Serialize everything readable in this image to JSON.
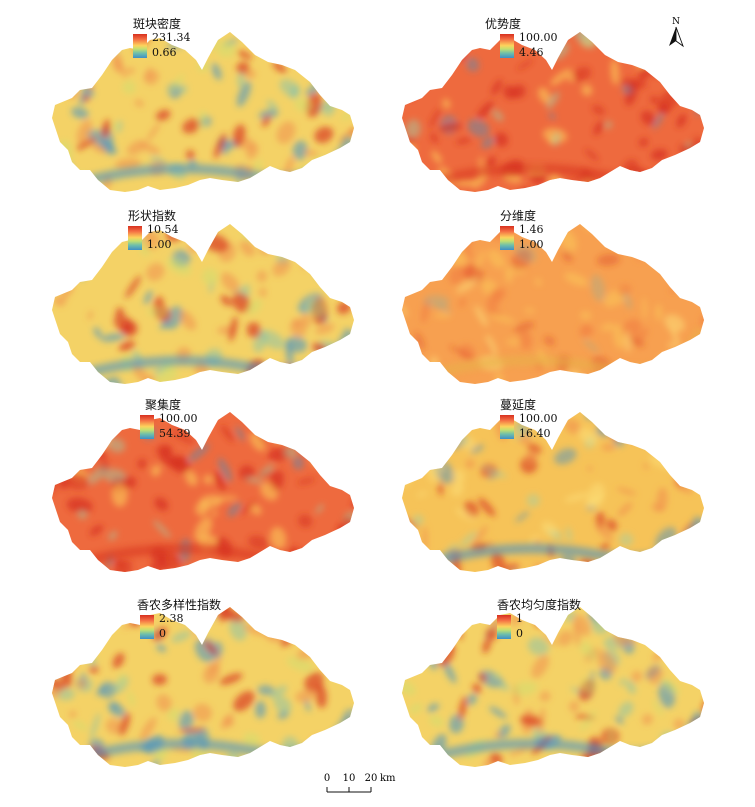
{
  "panels": [
    {
      "title": "斑块密度",
      "max": "231.34",
      "min": "0.66",
      "scheme": "mixed",
      "seed": 11
    },
    {
      "title": "优势度",
      "max": "100.00",
      "min": "4.46",
      "scheme": "hot",
      "seed": 23
    },
    {
      "title": "形状指数",
      "max": "10.54",
      "min": "1.00",
      "scheme": "mixed",
      "seed": 37
    },
    {
      "title": "分维度",
      "max": "1.46",
      "min": "1.00",
      "scheme": "warm",
      "seed": 41
    },
    {
      "title": "聚集度",
      "max": "100.00",
      "min": "54.39",
      "scheme": "hot",
      "seed": 53
    },
    {
      "title": "蔓延度",
      "max": "100.00",
      "min": "16.40",
      "scheme": "warmmixed",
      "seed": 67
    },
    {
      "title": "香农多样性指数",
      "max": "2.38",
      "min": "0",
      "scheme": "mixed",
      "seed": 79
    },
    {
      "title": "香农均匀度指数",
      "max": "1",
      "min": "0",
      "scheme": "mixed",
      "seed": 83
    }
  ],
  "north_arrow": {
    "label": "N"
  },
  "scale_bar": {
    "ticks": [
      "0",
      "10",
      "20"
    ],
    "unit": "km"
  },
  "colors": {
    "high": "#d7301f",
    "mid": "#fdd35c",
    "low": "#3f8fc6"
  }
}
